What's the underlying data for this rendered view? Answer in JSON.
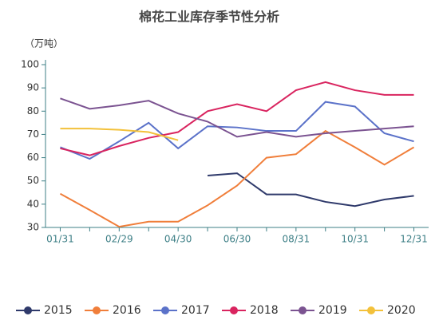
{
  "chart_data": {
    "type": "line",
    "title": "棉花工业库存季节性分析",
    "y_label": "（万吨）",
    "categories": [
      "01/31",
      null,
      "02/29",
      null,
      "04/30",
      null,
      "06/30",
      null,
      "08/31",
      null,
      "10/31",
      null,
      "12/31"
    ],
    "ylim": [
      30,
      100
    ],
    "yticks": [
      30,
      40,
      50,
      60,
      70,
      80,
      90,
      100
    ],
    "grid": false,
    "legend": "bottom",
    "series": [
      {
        "name": "2015",
        "color": "#2f3a6b",
        "values": [
          null,
          null,
          null,
          null,
          null,
          52.3,
          53.3,
          44.2,
          44.2,
          41,
          39.2,
          42,
          43.6
        ]
      },
      {
        "name": "2016",
        "color": "#f07e3a",
        "values": [
          44.5,
          37.5,
          30.3,
          32.5,
          32.5,
          39.5,
          48,
          60,
          61.5,
          71.5,
          64.5,
          57,
          64.5
        ]
      },
      {
        "name": "2017",
        "color": "#5b72c9",
        "values": [
          64.5,
          59.5,
          67,
          75,
          64,
          73.5,
          73,
          71.5,
          71.5,
          84,
          82,
          70.5,
          67
        ]
      },
      {
        "name": "2018",
        "color": "#d9245f",
        "values": [
          64,
          61,
          65,
          68.5,
          71,
          80,
          83,
          80,
          89,
          92.5,
          89,
          87,
          87
        ]
      },
      {
        "name": "2019",
        "color": "#7b5391",
        "values": [
          85.5,
          81,
          82.5,
          84.5,
          79,
          75.5,
          69,
          71,
          69,
          70.5,
          71.5,
          72.5,
          73.5
        ]
      },
      {
        "name": "2020",
        "color": "#f3c13a",
        "values": [
          72.5,
          72.5,
          72,
          71,
          67.5,
          null,
          null,
          null,
          null,
          null,
          null,
          null,
          null
        ]
      }
    ]
  }
}
